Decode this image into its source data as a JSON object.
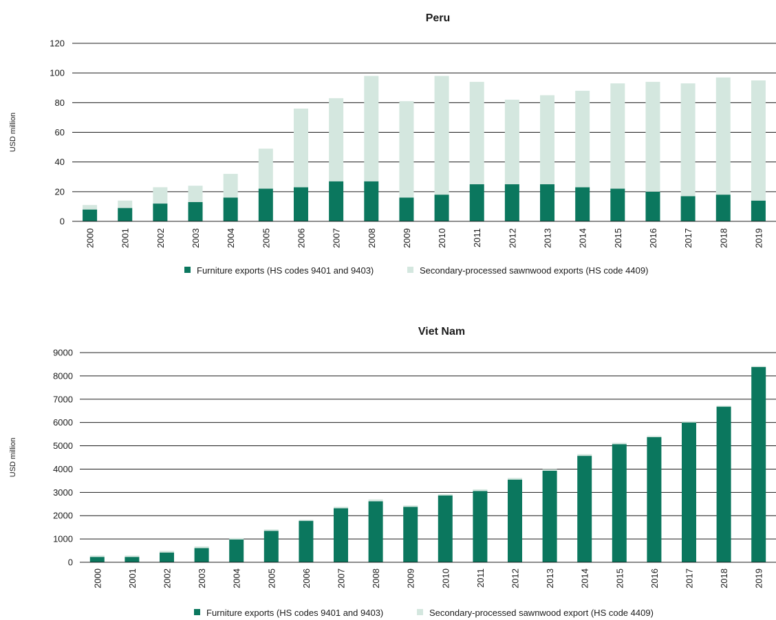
{
  "colors": {
    "furniture": "#0b775e",
    "sawnwood": "#d4e7df",
    "grid": "#1a1a1a"
  },
  "chart_data": [
    {
      "type": "bar",
      "stacked": true,
      "title": "Peru",
      "ylabel": "USD million",
      "ylim": [
        0,
        120
      ],
      "yticks": [
        0,
        20,
        40,
        60,
        80,
        100,
        120
      ],
      "categories": [
        "2000",
        "2001",
        "2002",
        "2003",
        "2004",
        "2005",
        "2006",
        "2007",
        "2008",
        "2009",
        "2010",
        "2011",
        "2012",
        "2013",
        "2014",
        "2015",
        "2016",
        "2017",
        "2018",
        "2019"
      ],
      "series": [
        {
          "name": "Furniture exports (HS codes 9401 and 9403)",
          "values": [
            8,
            9,
            12,
            13,
            16,
            22,
            23,
            27,
            27,
            16,
            18,
            25,
            25,
            25,
            23,
            22,
            20,
            17,
            18,
            14
          ]
        },
        {
          "name": "Secondary-processed sawnwood exports (HS code 4409)",
          "values": [
            3,
            5,
            11,
            11,
            16,
            27,
            53,
            56,
            71,
            65,
            80,
            69,
            57,
            60,
            65,
            71,
            74,
            76,
            79,
            81
          ]
        }
      ],
      "grid": true,
      "legend": "bottom"
    },
    {
      "type": "bar",
      "stacked": true,
      "title": "Viet Nam",
      "ylabel": "USD million",
      "ylim": [
        0,
        9000
      ],
      "yticks": [
        0,
        1000,
        2000,
        3000,
        4000,
        5000,
        6000,
        7000,
        8000,
        9000
      ],
      "categories": [
        "2000",
        "2001",
        "2002",
        "2003",
        "2004",
        "2005",
        "2006",
        "2007",
        "2008",
        "2009",
        "2010",
        "2011",
        "2012",
        "2013",
        "2014",
        "2015",
        "2016",
        "2017",
        "2018",
        "2019"
      ],
      "series": [
        {
          "name": "Furniture exports (HS codes 9401 and 9403)",
          "values": [
            230,
            230,
            420,
            610,
            980,
            1350,
            1780,
            2320,
            2620,
            2380,
            2870,
            3060,
            3550,
            3930,
            4570,
            5070,
            5370,
            6000,
            6680,
            8380
          ]
        },
        {
          "name": "Secondary-processed sawnwood  export (HS code 4409)",
          "values": [
            60,
            60,
            70,
            70,
            60,
            60,
            40,
            60,
            80,
            60,
            50,
            70,
            70,
            70,
            70,
            60,
            60,
            50,
            40,
            40
          ]
        }
      ],
      "grid": true,
      "legend": "bottom"
    }
  ]
}
